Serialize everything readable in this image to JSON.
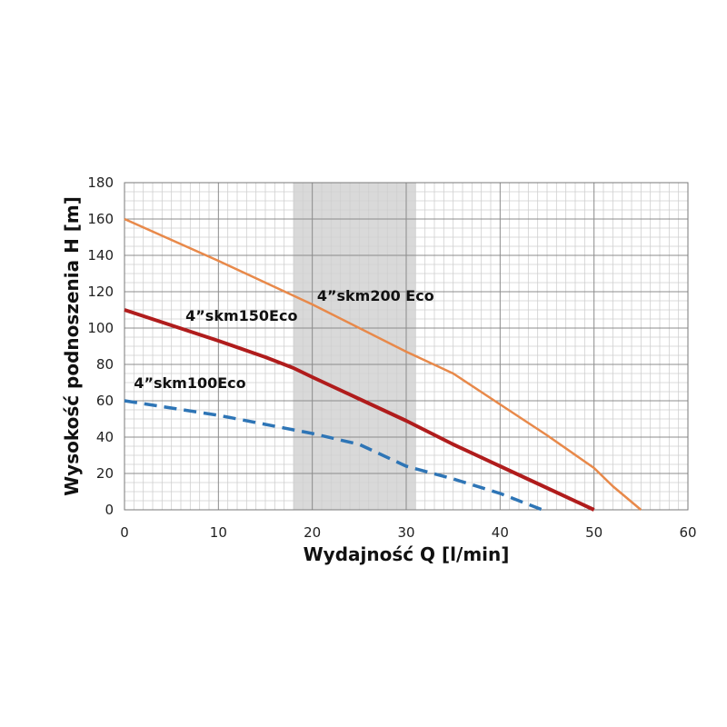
{
  "chart_data": {
    "type": "line",
    "xlabel": "Wydajność Q [l/min]",
    "ylabel": "Wysokość podnoszenia H [m]",
    "xlim": [
      0,
      60
    ],
    "ylim": [
      0,
      180
    ],
    "x_ticks": [
      "0",
      "10",
      "20",
      "30",
      "40",
      "50",
      "60"
    ],
    "y_ticks": [
      "0",
      "20",
      "40",
      "60",
      "80",
      "100",
      "120",
      "140",
      "160",
      "180"
    ],
    "grid": true,
    "highlight_band": {
      "x_from": 18,
      "x_to": 31,
      "color": "#d9d9d9"
    },
    "series": [
      {
        "name": "4”skm200 Eco",
        "color": "#e8894a",
        "style": "solid",
        "points": [
          [
            0,
            160
          ],
          [
            10,
            137
          ],
          [
            20,
            113
          ],
          [
            30,
            87
          ],
          [
            35,
            75
          ],
          [
            40,
            58
          ],
          [
            45,
            41
          ],
          [
            50,
            23
          ],
          [
            52,
            13
          ],
          [
            55,
            0
          ]
        ]
      },
      {
        "name": "4”skm150Eco",
        "color": "#b01c1c",
        "style": "solid",
        "points": [
          [
            0,
            110
          ],
          [
            10,
            93
          ],
          [
            15,
            84
          ],
          [
            18,
            78
          ],
          [
            20,
            73
          ],
          [
            25,
            61
          ],
          [
            30,
            49
          ],
          [
            35,
            36
          ],
          [
            40,
            24
          ],
          [
            45,
            12
          ],
          [
            50,
            0
          ]
        ]
      },
      {
        "name": "4”skm100Eco",
        "color": "#2e75b6",
        "style": "dashed",
        "points": [
          [
            0,
            60
          ],
          [
            10,
            52
          ],
          [
            20,
            42
          ],
          [
            25,
            36
          ],
          [
            30,
            24
          ],
          [
            35,
            17
          ],
          [
            40,
            9
          ],
          [
            44.5,
            0
          ]
        ]
      }
    ],
    "annotations": [
      {
        "text": "4”skm200 Eco",
        "x": 20.5,
        "y": 115
      },
      {
        "text": "4”skm150Eco",
        "x": 6.5,
        "y": 104
      },
      {
        "text": "4”skm100Eco",
        "x": 1,
        "y": 67
      }
    ]
  }
}
